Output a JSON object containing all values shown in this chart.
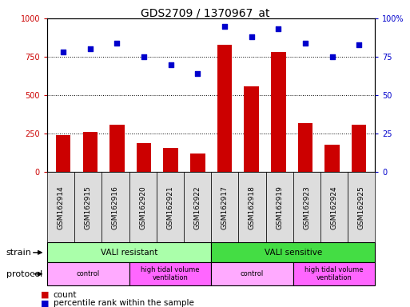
{
  "title": "GDS2709 / 1370967_at",
  "samples": [
    "GSM162914",
    "GSM162915",
    "GSM162916",
    "GSM162920",
    "GSM162921",
    "GSM162922",
    "GSM162917",
    "GSM162918",
    "GSM162919",
    "GSM162923",
    "GSM162924",
    "GSM162925"
  ],
  "counts": [
    240,
    260,
    310,
    190,
    155,
    120,
    830,
    560,
    780,
    320,
    175,
    305
  ],
  "percentiles": [
    78,
    80,
    84,
    75,
    70,
    64,
    95,
    88,
    93,
    84,
    75,
    83
  ],
  "bar_color": "#cc0000",
  "dot_color": "#0000cc",
  "ylim_left": [
    0,
    1000
  ],
  "ylim_right": [
    0,
    100
  ],
  "yticks_left": [
    0,
    250,
    500,
    750,
    1000
  ],
  "yticks_right": [
    0,
    25,
    50,
    75,
    100
  ],
  "grid_values": [
    250,
    500,
    750
  ],
  "strain_groups": [
    {
      "label": "VALI resistant",
      "start": 0,
      "end": 6,
      "color": "#aaffaa"
    },
    {
      "label": "VALI sensitive",
      "start": 6,
      "end": 12,
      "color": "#44dd44"
    }
  ],
  "protocol_groups": [
    {
      "label": "control",
      "start": 0,
      "end": 3,
      "color": "#ffaaff"
    },
    {
      "label": "high tidal volume\nventilation",
      "start": 3,
      "end": 6,
      "color": "#ff66ff"
    },
    {
      "label": "control",
      "start": 6,
      "end": 9,
      "color": "#ffaaff"
    },
    {
      "label": "high tidal volume\nventilation",
      "start": 9,
      "end": 12,
      "color": "#ff66ff"
    }
  ],
  "strain_label": "strain",
  "protocol_label": "protocol",
  "legend_count_label": "count",
  "legend_pct_label": "percentile rank within the sample",
  "title_fontsize": 10,
  "tick_label_fontsize": 7,
  "bar_width": 0.55,
  "background_color": "#ffffff",
  "plot_bg_color": "#ffffff",
  "left_axis_color": "#cc0000",
  "right_axis_color": "#0000cc",
  "sample_box_color": "#dddddd",
  "label_box_color": "#cccccc"
}
